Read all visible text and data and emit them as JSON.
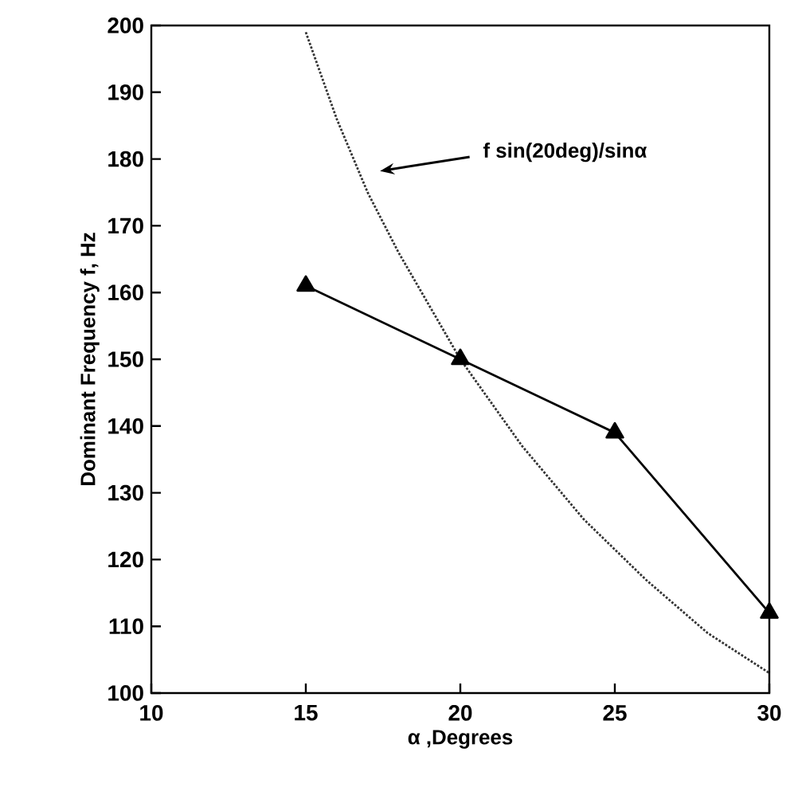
{
  "chart_data": {
    "type": "line",
    "xlabel": "α ,Degrees",
    "ylabel": "Dominant Frequency f, Hz",
    "xlim": [
      10,
      30
    ],
    "ylim": [
      100,
      200
    ],
    "xticks": [
      10,
      15,
      20,
      25,
      30
    ],
    "yticks": [
      100,
      110,
      120,
      130,
      140,
      150,
      160,
      170,
      180,
      190,
      200
    ],
    "grid": false,
    "series": [
      {
        "color": "#000000",
        "marker": "triangle",
        "line_style": "solid",
        "x": [
          15,
          20,
          25,
          30
        ],
        "values": [
          161,
          150,
          139,
          112
        ]
      },
      {
        "color": "#333333",
        "marker": "none",
        "line_style": "dotted",
        "x": [
          15,
          16,
          17,
          18,
          19,
          20,
          22,
          24,
          26,
          28,
          30
        ],
        "values": [
          199,
          186,
          175,
          166,
          158,
          150,
          137,
          126,
          117,
          109,
          103
        ]
      }
    ],
    "annotations": [
      "f sin(20deg)/sinα"
    ]
  }
}
